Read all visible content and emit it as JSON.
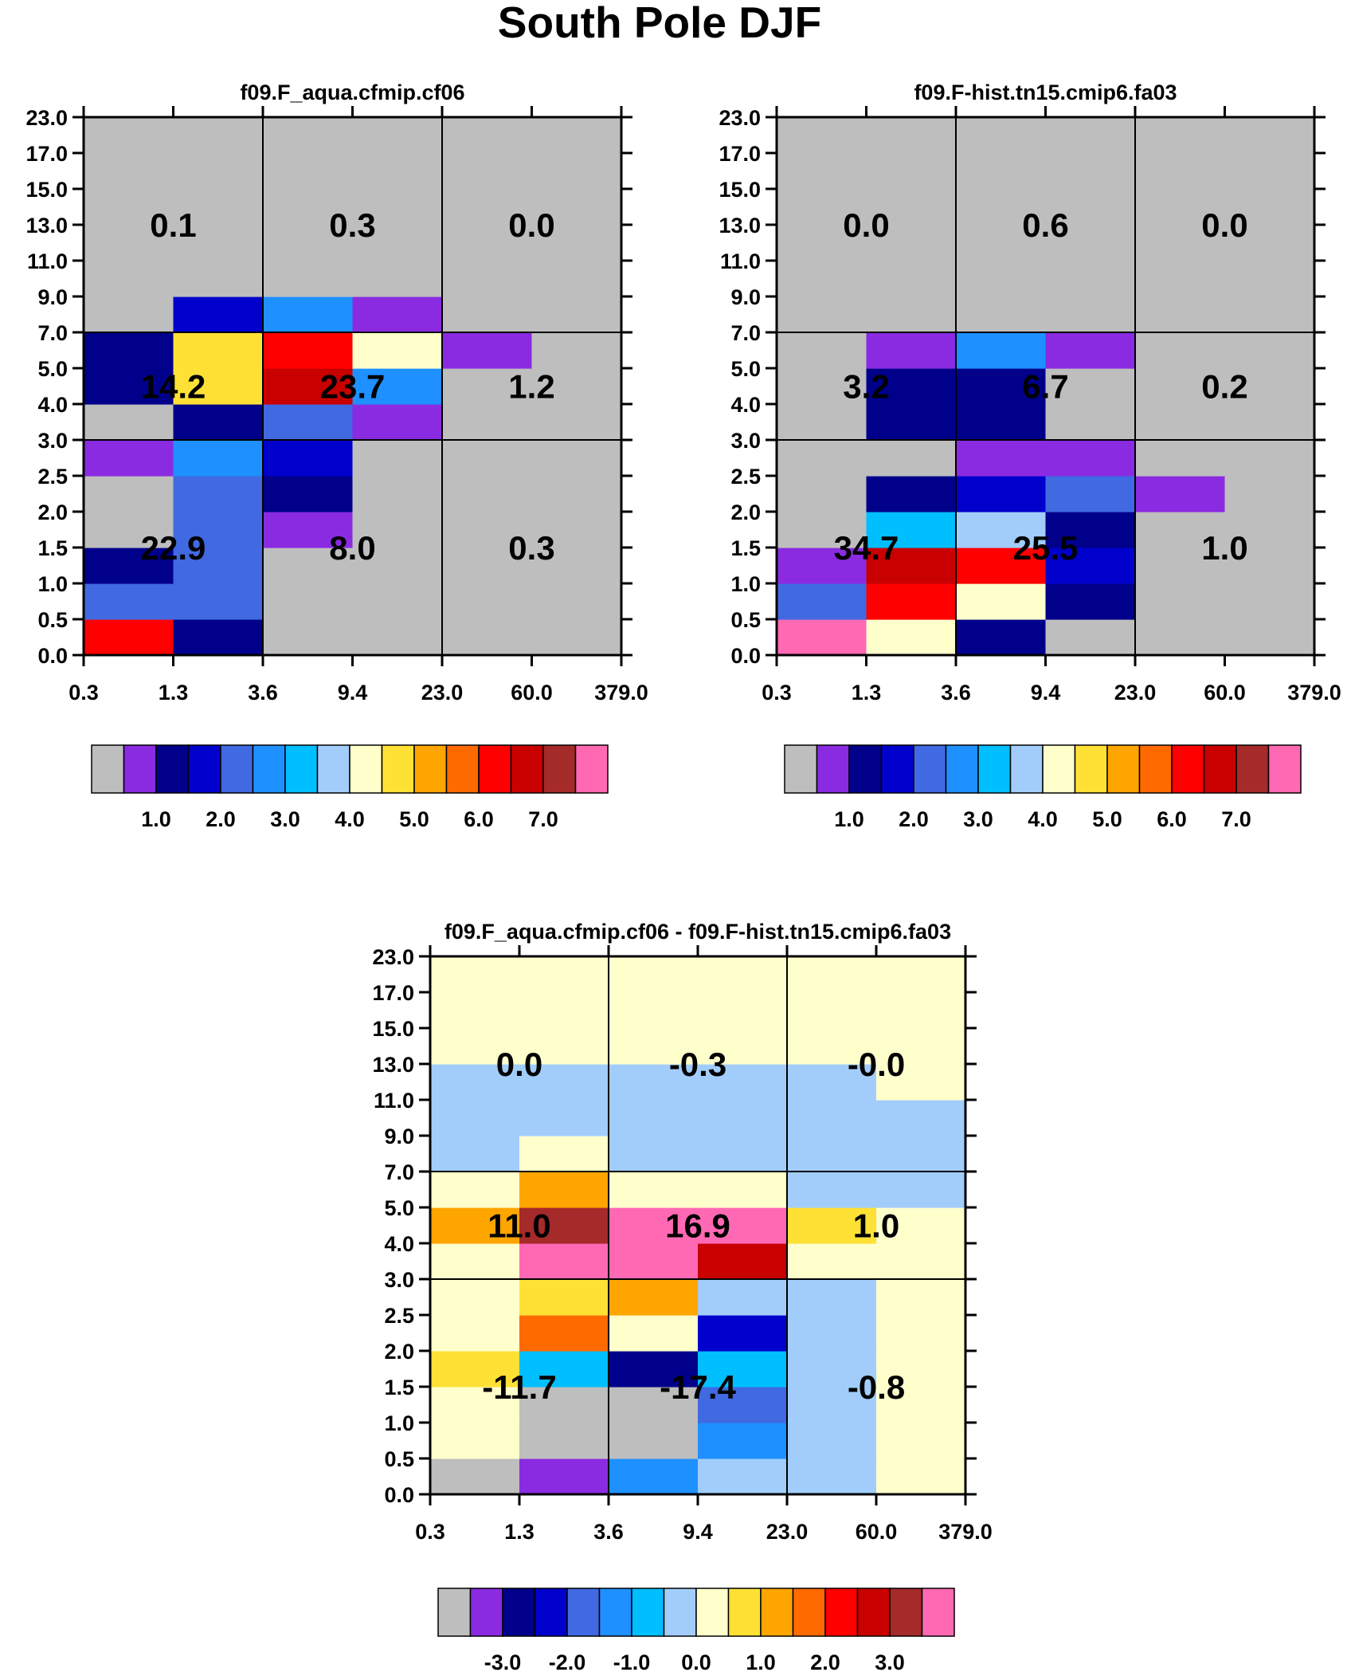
{
  "title": "South Pole DJF",
  "colors": {
    "palette": [
      "#bebebe",
      "#8a2be2",
      "#00008b",
      "#0000cd",
      "#4169e1",
      "#1e90ff",
      "#00bfff",
      "#a2cdfa",
      "#ffffcc",
      "#ffe135",
      "#ffa500",
      "#ff6a00",
      "#ff0000",
      "#c80000",
      "#a52a2a",
      "#ff69b4"
    ],
    "border": "#000000"
  },
  "chart_data": [
    {
      "type": "heatmap",
      "title": "f09.F_aqua.cfmip.cf06",
      "x_ticks": [
        "0.3",
        "1.3",
        "3.6",
        "9.4",
        "23.0",
        "60.0",
        "379.0"
      ],
      "y_ticks": [
        "0.0",
        "0.5",
        "1.0",
        "1.5",
        "2.0",
        "2.5",
        "3.0",
        "4.0",
        "5.0",
        "7.0",
        "9.0",
        "11.0",
        "13.0",
        "15.0",
        "17.0",
        "23.0"
      ],
      "cells": [
        [
          12,
          2,
          0,
          0,
          0,
          0
        ],
        [
          4,
          4,
          0,
          0,
          0,
          0
        ],
        [
          2,
          4,
          0,
          0,
          0,
          0
        ],
        [
          0,
          4,
          1,
          0,
          0,
          0
        ],
        [
          0,
          4,
          2,
          0,
          0,
          0
        ],
        [
          1,
          5,
          3,
          0,
          0,
          0
        ],
        [
          0,
          2,
          4,
          1,
          0,
          0
        ],
        [
          2,
          9,
          13,
          5,
          0,
          0
        ],
        [
          2,
          9,
          12,
          8,
          1,
          0
        ],
        [
          0,
          3,
          5,
          1,
          0,
          0
        ],
        [
          0,
          0,
          0,
          0,
          0,
          0
        ],
        [
          0,
          0,
          0,
          0,
          0,
          0
        ],
        [
          0,
          0,
          0,
          0,
          0,
          0
        ],
        [
          0,
          0,
          0,
          0,
          0,
          0
        ],
        [
          0,
          0,
          0,
          0,
          0,
          0
        ]
      ],
      "region_values": {
        "top": [
          "0.1",
          "0.3",
          "0.0"
        ],
        "middle": [
          "14.2",
          "23.7",
          "1.2"
        ],
        "bottom": [
          "22.9",
          "8.0",
          "0.3"
        ]
      },
      "colorbar_labels": [
        "1.0",
        "2.0",
        "3.0",
        "4.0",
        "5.0",
        "6.0",
        "7.0"
      ]
    },
    {
      "type": "heatmap",
      "title": "f09.F-hist.tn15.cmip6.fa03",
      "x_ticks": [
        "0.3",
        "1.3",
        "3.6",
        "9.4",
        "23.0",
        "60.0",
        "379.0"
      ],
      "y_ticks": [
        "0.0",
        "0.5",
        "1.0",
        "1.5",
        "2.0",
        "2.5",
        "3.0",
        "4.0",
        "5.0",
        "7.0",
        "9.0",
        "11.0",
        "13.0",
        "15.0",
        "17.0",
        "23.0"
      ],
      "cells": [
        [
          15,
          8,
          2,
          0,
          0,
          0
        ],
        [
          4,
          12,
          8,
          2,
          0,
          0
        ],
        [
          1,
          13,
          12,
          3,
          0,
          0
        ],
        [
          0,
          6,
          7,
          2,
          0,
          0
        ],
        [
          0,
          2,
          3,
          4,
          1,
          0
        ],
        [
          0,
          0,
          1,
          1,
          0,
          0
        ],
        [
          0,
          2,
          2,
          0,
          0,
          0
        ],
        [
          0,
          2,
          2,
          0,
          0,
          0
        ],
        [
          0,
          1,
          5,
          1,
          0,
          0
        ],
        [
          0,
          0,
          0,
          0,
          0,
          0
        ],
        [
          0,
          0,
          0,
          0,
          0,
          0
        ],
        [
          0,
          0,
          0,
          0,
          0,
          0
        ],
        [
          0,
          0,
          0,
          0,
          0,
          0
        ],
        [
          0,
          0,
          0,
          0,
          0,
          0
        ],
        [
          0,
          0,
          0,
          0,
          0,
          0
        ]
      ],
      "region_values": {
        "top": [
          "0.0",
          "0.6",
          "0.0"
        ],
        "middle": [
          "3.2",
          "6.7",
          "0.2"
        ],
        "bottom": [
          "34.7",
          "25.5",
          "1.0"
        ]
      },
      "colorbar_labels": [
        "1.0",
        "2.0",
        "3.0",
        "4.0",
        "5.0",
        "6.0",
        "7.0"
      ]
    },
    {
      "type": "heatmap",
      "title": "f09.F_aqua.cfmip.cf06 - f09.F-hist.tn15.cmip6.fa03",
      "x_ticks": [
        "0.3",
        "1.3",
        "3.6",
        "9.4",
        "23.0",
        "60.0",
        "379.0"
      ],
      "y_ticks": [
        "0.0",
        "0.5",
        "1.0",
        "1.5",
        "2.0",
        "2.5",
        "3.0",
        "4.0",
        "5.0",
        "7.0",
        "9.0",
        "11.0",
        "13.0",
        "15.0",
        "17.0",
        "23.0"
      ],
      "cells": [
        [
          0,
          1,
          5,
          7,
          7,
          8
        ],
        [
          8,
          0,
          0,
          5,
          7,
          8
        ],
        [
          8,
          0,
          0,
          4,
          7,
          8
        ],
        [
          9,
          6,
          2,
          6,
          7,
          8
        ],
        [
          8,
          11,
          8,
          3,
          7,
          8
        ],
        [
          8,
          9,
          10,
          7,
          7,
          8
        ],
        [
          8,
          15,
          15,
          13,
          8,
          8
        ],
        [
          10,
          14,
          15,
          15,
          9,
          8
        ],
        [
          8,
          10,
          8,
          8,
          7,
          7
        ],
        [
          7,
          8,
          7,
          7,
          7,
          7
        ],
        [
          7,
          7,
          7,
          7,
          7,
          7
        ],
        [
          7,
          7,
          7,
          7,
          7,
          8
        ],
        [
          8,
          8,
          8,
          8,
          8,
          8
        ],
        [
          8,
          8,
          8,
          8,
          8,
          8
        ],
        [
          8,
          8,
          8,
          8,
          8,
          8
        ]
      ],
      "region_values": {
        "top": [
          "0.0",
          "-0.3",
          "-0.0"
        ],
        "middle": [
          "11.0",
          "16.9",
          "1.0"
        ],
        "bottom": [
          "-11.7",
          "-17.4",
          "-0.8"
        ]
      },
      "colorbar_labels": [
        "-3.0",
        "-2.0",
        "-1.0",
        "0.0",
        "1.0",
        "2.0",
        "3.0"
      ]
    }
  ]
}
